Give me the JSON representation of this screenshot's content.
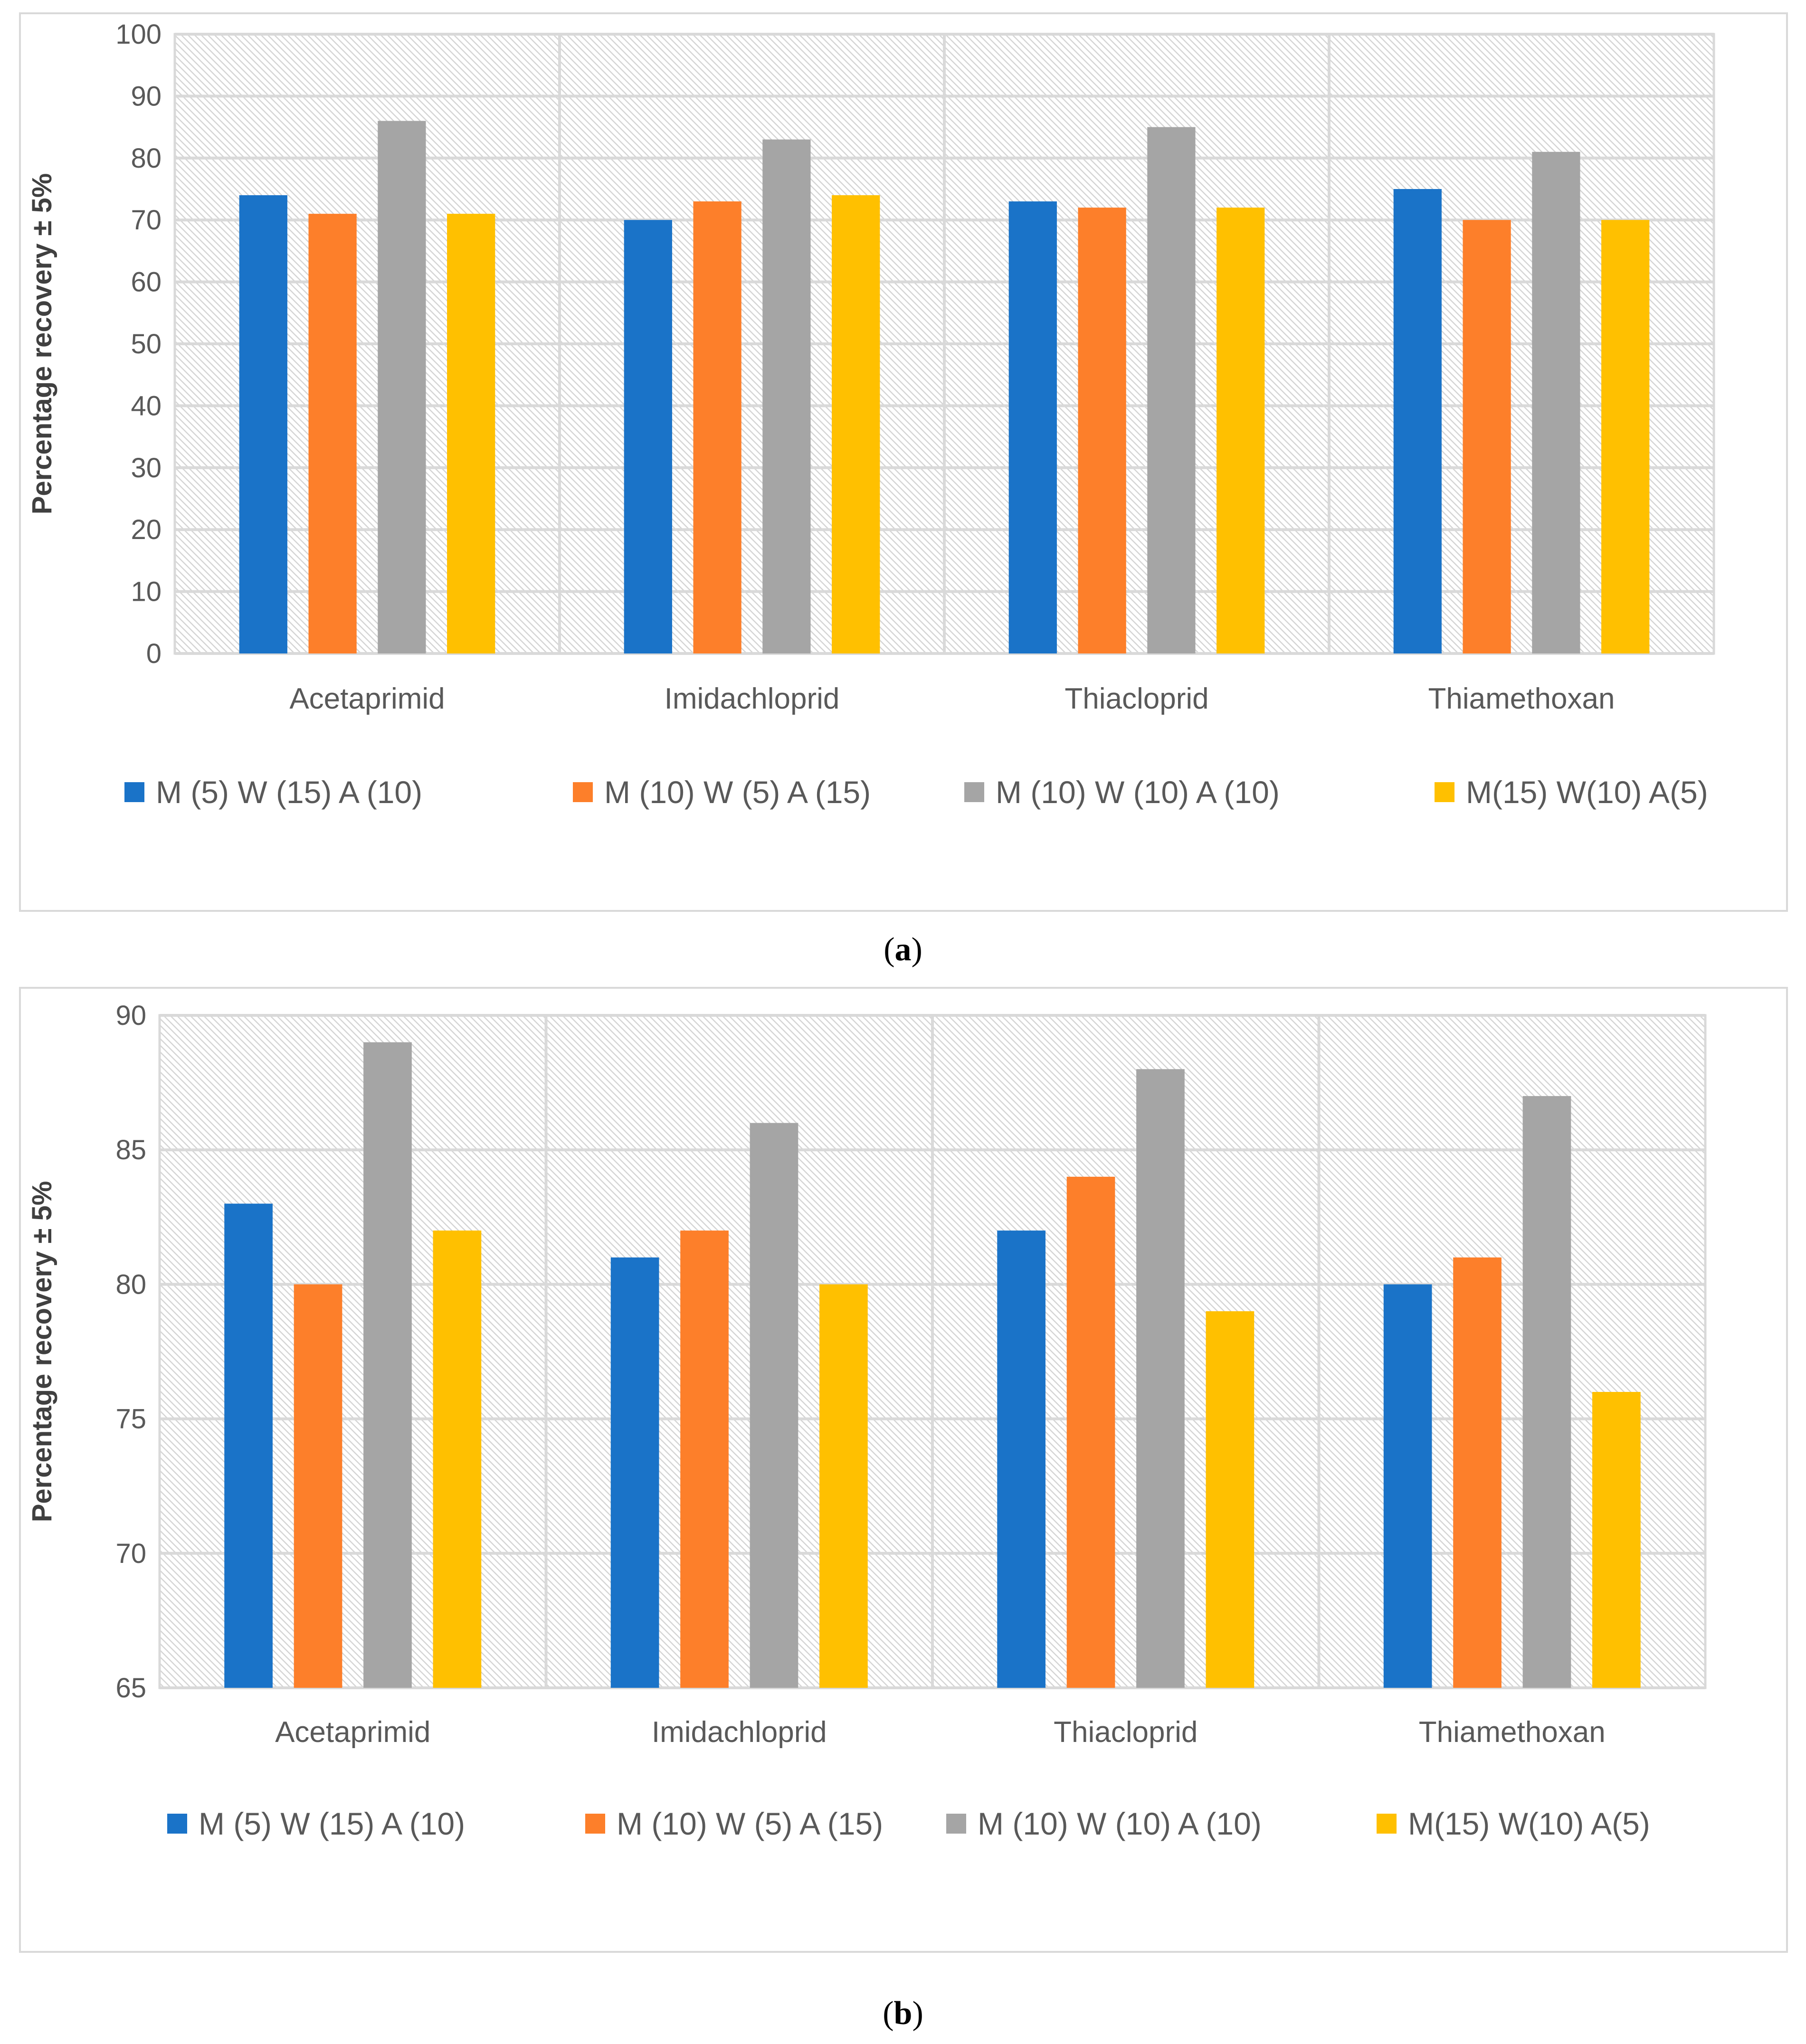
{
  "chart_data": [
    {
      "type": "bar",
      "panel": "a",
      "categories": [
        "Acetaprimid",
        "Imidachloprid",
        "Thiacloprid",
        "Thiamethoxan"
      ],
      "series": [
        {
          "name": "M (5) W (15) A (10)",
          "color": "#1a73c8",
          "values": [
            74,
            70,
            73,
            75
          ]
        },
        {
          "name": "M (10) W (5) A (15)",
          "color": "#fd7f2a",
          "values": [
            71,
            73,
            72,
            70
          ]
        },
        {
          "name": "M (10) W (10) A (10)",
          "color": "#a5a5a5",
          "values": [
            86,
            83,
            85,
            81
          ]
        },
        {
          "name": "M(15) W(10) A(5)",
          "color": "#ffc000",
          "values": [
            71,
            74,
            72,
            70
          ]
        }
      ],
      "ylabel": "Percentage recovery ± 5%",
      "xlabel": "",
      "ylim": [
        0,
        100
      ],
      "yticks": [
        0,
        10,
        20,
        30,
        40,
        50,
        60,
        70,
        80,
        90,
        100
      ],
      "legend": "bottom",
      "grid": true
    },
    {
      "type": "bar",
      "panel": "b",
      "categories": [
        "Acetaprimid",
        "Imidachloprid",
        "Thiacloprid",
        "Thiamethoxan"
      ],
      "series": [
        {
          "name": "M (5) W (15) A (10)",
          "color": "#1a73c8",
          "values": [
            83,
            81,
            82,
            80
          ]
        },
        {
          "name": "M (10) W (5) A (15)",
          "color": "#fd7f2a",
          "values": [
            80,
            82,
            84,
            81
          ]
        },
        {
          "name": "M (10) W (10) A (10)",
          "color": "#a5a5a5",
          "values": [
            89,
            86,
            88,
            87
          ]
        },
        {
          "name": "M(15) W(10) A(5)",
          "color": "#ffc000",
          "values": [
            82,
            80,
            79,
            76
          ]
        }
      ],
      "ylabel": "Percentage recovery ± 5%",
      "xlabel": "",
      "ylim": [
        65,
        90
      ],
      "yticks": [
        65,
        70,
        75,
        80,
        85,
        90
      ],
      "legend": "bottom",
      "grid": true
    }
  ],
  "captions": {
    "a": "a",
    "b": "b"
  }
}
